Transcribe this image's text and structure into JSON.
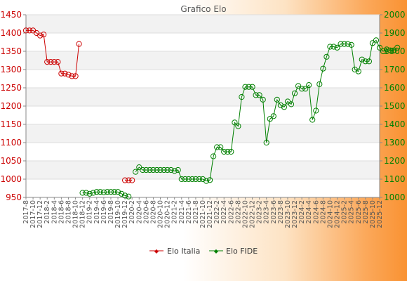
{
  "chart_data": {
    "type": "line",
    "title": "Grafico Elo",
    "left_axis": {
      "series": "Elo Italia",
      "ylim": [
        950,
        1450
      ],
      "ticks": [
        950,
        1000,
        1050,
        1100,
        1150,
        1200,
        1250,
        1300,
        1350,
        1400,
        1450
      ],
      "color": "#cc0000"
    },
    "right_axis": {
      "series": "Elo FIDE",
      "ylim": [
        1000,
        2000
      ],
      "ticks": [
        1000,
        1100,
        1200,
        1300,
        1400,
        1500,
        1600,
        1700,
        1800,
        1900,
        2000
      ],
      "color": "#008000"
    },
    "x_range": [
      "2017-08",
      "2025-12"
    ],
    "x_tick_labels": [
      "2017-8",
      "2017-10",
      "2017-12",
      "2018-2",
      "2018-4",
      "2018-6",
      "2018-8",
      "2018-10",
      "2018-12",
      "2019-2",
      "2019-4",
      "2019-6",
      "2019-8",
      "2019-10",
      "2019-12",
      "2020-2",
      "2020-4",
      "2020-6",
      "2020-8",
      "2020-10",
      "2020-12",
      "2021-2",
      "2021-4",
      "2021-6",
      "2021-8",
      "2021-10",
      "2021-12",
      "2022-2",
      "2022-4",
      "2022-6",
      "2022-8",
      "2022-10",
      "2022-12",
      "2023-2",
      "2023-4",
      "2023-6",
      "2023-8",
      "2023-10",
      "2023-12",
      "2024-2",
      "2024-4",
      "2024-6",
      "2024-8",
      "2024-10",
      "2024-12",
      "2025-2",
      "2025-4",
      "2025-6",
      "2025-8",
      "2025-10",
      "2025-12"
    ],
    "grid": true,
    "legend_position": "bottom",
    "series": [
      {
        "name": "Elo Italia",
        "color": "#cc0000",
        "axis": "left",
        "segments": [
          [
            [
              "2017-08",
              1407
            ],
            [
              "2017-09",
              1407
            ],
            [
              "2017-10",
              1407
            ],
            [
              "2017-11",
              1400
            ],
            [
              "2017-12",
              1393
            ],
            [
              "2018-01",
              1396
            ],
            [
              "2018-02",
              1321
            ],
            [
              "2018-03",
              1321
            ],
            [
              "2018-04",
              1321
            ],
            [
              "2018-05",
              1321
            ],
            [
              "2018-06",
              1289
            ],
            [
              "2018-07",
              1289
            ],
            [
              "2018-08",
              1286
            ],
            [
              "2018-09",
              1282
            ],
            [
              "2018-10",
              1282
            ],
            [
              "2018-11",
              1370
            ]
          ],
          [
            [
              "2019-12",
              997
            ],
            [
              "2020-01",
              997
            ],
            [
              "2020-02",
              997
            ]
          ]
        ]
      },
      {
        "name": "Elo FIDE",
        "color": "#008000",
        "axis": "right",
        "segments": [
          [
            [
              "2018-12",
              1025
            ],
            [
              "2019-01",
              1025
            ],
            [
              "2019-02",
              1020
            ],
            [
              "2019-03",
              1025
            ],
            [
              "2019-04",
              1030
            ],
            [
              "2019-05",
              1030
            ],
            [
              "2019-06",
              1028
            ],
            [
              "2019-07",
              1030
            ],
            [
              "2019-08",
              1030
            ],
            [
              "2019-09",
              1030
            ],
            [
              "2019-10",
              1030
            ],
            [
              "2019-11",
              1020
            ],
            [
              "2019-12",
              1010
            ],
            [
              "2020-01",
              1005
            ]
          ],
          [
            [
              "2020-03",
              1140
            ],
            [
              "2020-04",
              1165
            ],
            [
              "2020-05",
              1150
            ],
            [
              "2020-06",
              1150
            ],
            [
              "2020-07",
              1150
            ],
            [
              "2020-08",
              1150
            ],
            [
              "2020-09",
              1150
            ],
            [
              "2020-10",
              1150
            ],
            [
              "2020-11",
              1150
            ],
            [
              "2020-12",
              1150
            ],
            [
              "2021-01",
              1150
            ],
            [
              "2021-02",
              1145
            ],
            [
              "2021-03",
              1150
            ],
            [
              "2021-04",
              1100
            ],
            [
              "2021-05",
              1100
            ],
            [
              "2021-06",
              1100
            ],
            [
              "2021-07",
              1100
            ],
            [
              "2021-08",
              1100
            ],
            [
              "2021-09",
              1100
            ],
            [
              "2021-10",
              1100
            ],
            [
              "2021-11",
              1090
            ],
            [
              "2021-12",
              1095
            ],
            [
              "2022-01",
              1225
            ],
            [
              "2022-02",
              1275
            ],
            [
              "2022-03",
              1275
            ],
            [
              "2022-04",
              1250
            ],
            [
              "2022-05",
              1250
            ],
            [
              "2022-06",
              1250
            ],
            [
              "2022-07",
              1410
            ],
            [
              "2022-08",
              1390
            ],
            [
              "2022-09",
              1550
            ],
            [
              "2022-10",
              1605
            ],
            [
              "2022-11",
              1605
            ],
            [
              "2022-12",
              1605
            ],
            [
              "2023-01",
              1560
            ],
            [
              "2023-02",
              1560
            ],
            [
              "2023-03",
              1535
            ],
            [
              "2023-04",
              1300
            ],
            [
              "2023-05",
              1430
            ],
            [
              "2023-06",
              1445
            ],
            [
              "2023-07",
              1535
            ],
            [
              "2023-08",
              1505
            ],
            [
              "2023-09",
              1495
            ],
            [
              "2023-10",
              1525
            ],
            [
              "2023-11",
              1510
            ],
            [
              "2023-12",
              1570
            ],
            [
              "2024-01",
              1610
            ],
            [
              "2024-02",
              1595
            ],
            [
              "2024-03",
              1595
            ],
            [
              "2024-04",
              1615
            ],
            [
              "2024-05",
              1425
            ],
            [
              "2024-06",
              1475
            ],
            [
              "2024-07",
              1620
            ],
            [
              "2024-08",
              1705
            ],
            [
              "2024-09",
              1770
            ],
            [
              "2024-10",
              1825
            ],
            [
              "2024-11",
              1825
            ],
            [
              "2024-12",
              1820
            ],
            [
              "2025-01",
              1840
            ],
            [
              "2025-02",
              1840
            ],
            [
              "2025-03",
              1840
            ],
            [
              "2025-04",
              1835
            ],
            [
              "2025-05",
              1700
            ],
            [
              "2025-06",
              1690
            ],
            [
              "2025-07",
              1755
            ],
            [
              "2025-08",
              1745
            ],
            [
              "2025-09",
              1745
            ],
            [
              "2025-10",
              1845
            ],
            [
              "2025-11",
              1860
            ],
            [
              "2025-12",
              1820
            ],
            [
              "2026-01",
              1800
            ],
            [
              "2026-02",
              1810
            ],
            [
              "2026-03",
              1805
            ],
            [
              "2026-04",
              1805
            ],
            [
              "2026-05",
              1820
            ]
          ]
        ]
      }
    ]
  },
  "legend": {
    "italia_label": "Elo Italia",
    "fide_label": "Elo FIDE"
  }
}
